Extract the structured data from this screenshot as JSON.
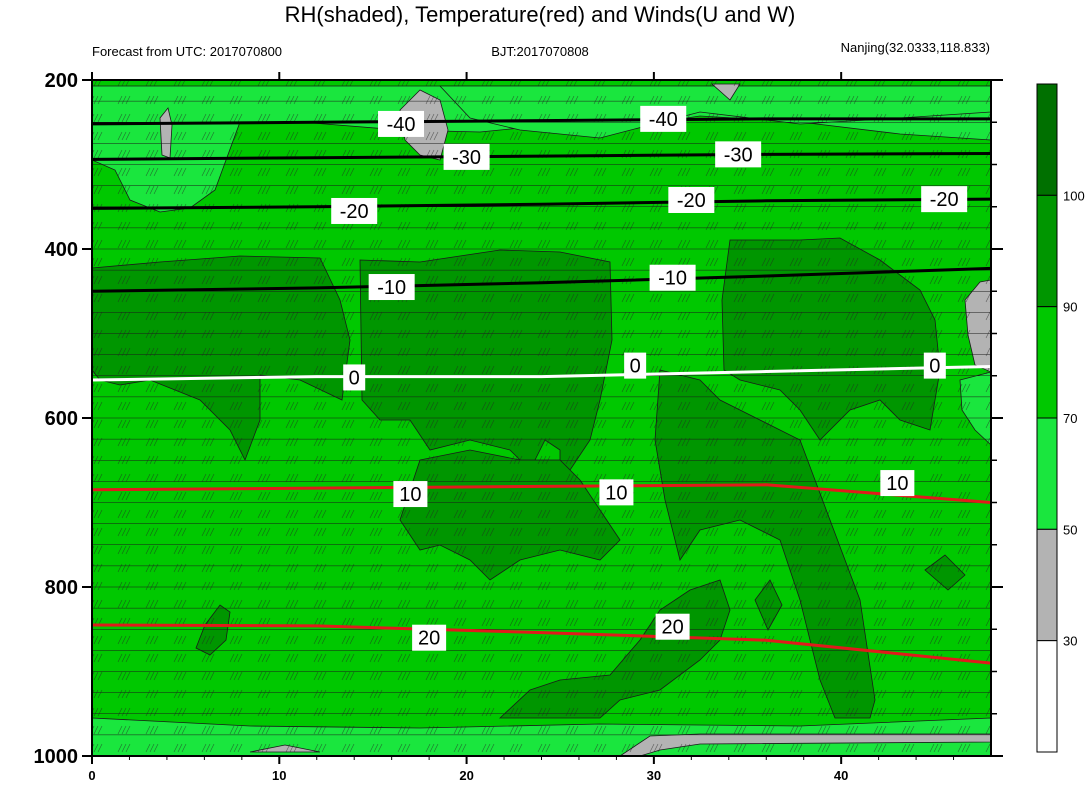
{
  "chart_data": {
    "type": "contour",
    "title": "RH(shaded), Temperature(red) and Winds(U and W)",
    "subtitle_left": "Forecast from UTC: 2017070800",
    "subtitle_center": "BJT:2017070808",
    "subtitle_right": "Nanjing(32.0333,118.833)",
    "x_ticks": [
      "0",
      "10",
      "20",
      "30",
      "40"
    ],
    "y_ticks": [
      "200",
      "400",
      "600",
      "800",
      "1000"
    ],
    "xlim": [
      0,
      48
    ],
    "ylim": [
      1000,
      200
    ],
    "colorbar_ticks": [
      "30",
      "50",
      "70",
      "90",
      "100"
    ],
    "colorbar_colors": [
      "#ffffff",
      "#b3b3b3",
      "#1ae63e",
      "#00c800",
      "#009600",
      "#007000"
    ],
    "temperature_contours": [
      {
        "value": -40,
        "color": "#000000",
        "points": [
          [
            0,
            252
          ],
          [
            12,
            250
          ],
          [
            24,
            248
          ],
          [
            36,
            246
          ],
          [
            48,
            246
          ]
        ],
        "label": "-40",
        "label_at": [
          [
            16.5,
            252
          ],
          [
            30.5,
            246
          ]
        ]
      },
      {
        "value": -30,
        "color": "#000000",
        "points": [
          [
            0,
            294
          ],
          [
            12,
            292
          ],
          [
            24,
            290
          ],
          [
            36,
            288
          ],
          [
            48,
            287
          ]
        ],
        "label": "-30",
        "label_at": [
          [
            20,
            291
          ],
          [
            34.5,
            288
          ]
        ]
      },
      {
        "value": -20,
        "color": "#000000",
        "points": [
          [
            0,
            352
          ],
          [
            12,
            350
          ],
          [
            24,
            347
          ],
          [
            36,
            343
          ],
          [
            48,
            341
          ]
        ],
        "label": "-20",
        "label_at": [
          [
            14,
            355
          ],
          [
            32,
            342
          ],
          [
            45.5,
            341
          ]
        ]
      },
      {
        "value": -10,
        "color": "#000000",
        "points": [
          [
            0,
            450
          ],
          [
            12,
            446
          ],
          [
            24,
            440
          ],
          [
            36,
            432
          ],
          [
            48,
            423
          ]
        ],
        "label": "-10",
        "label_at": [
          [
            16,
            445
          ],
          [
            31,
            434
          ]
        ]
      },
      {
        "value": 0,
        "color": "#ffffff",
        "points": [
          [
            0,
            555
          ],
          [
            12,
            551
          ],
          [
            24,
            551
          ],
          [
            36,
            545
          ],
          [
            48,
            539
          ]
        ],
        "label": "0",
        "label_at": [
          [
            14,
            552
          ],
          [
            29,
            538
          ],
          [
            45,
            538
          ]
        ]
      },
      {
        "value": 10,
        "color": "#e01b1b",
        "points": [
          [
            0,
            685
          ],
          [
            12,
            683
          ],
          [
            24,
            681
          ],
          [
            36,
            679
          ],
          [
            48,
            700
          ]
        ],
        "label": "10",
        "label_at": [
          [
            17,
            690
          ],
          [
            28,
            688
          ],
          [
            43,
            677
          ]
        ]
      },
      {
        "value": 20,
        "color": "#e01b1b",
        "points": [
          [
            0,
            845
          ],
          [
            12,
            846
          ],
          [
            24,
            854
          ],
          [
            36,
            863
          ],
          [
            48,
            890
          ]
        ],
        "label": "20",
        "label_at": [
          [
            18,
            860
          ],
          [
            31,
            847
          ]
        ]
      }
    ]
  },
  "colors": {
    "green_light": "#1ae63e",
    "green": "#00c800",
    "green_dark": "#009600",
    "green_darkest": "#007000",
    "gray": "#b3b3b3",
    "temp_warm": "#e01b1b",
    "temp_zero": "#ffffff",
    "temp_cold": "#000000"
  }
}
